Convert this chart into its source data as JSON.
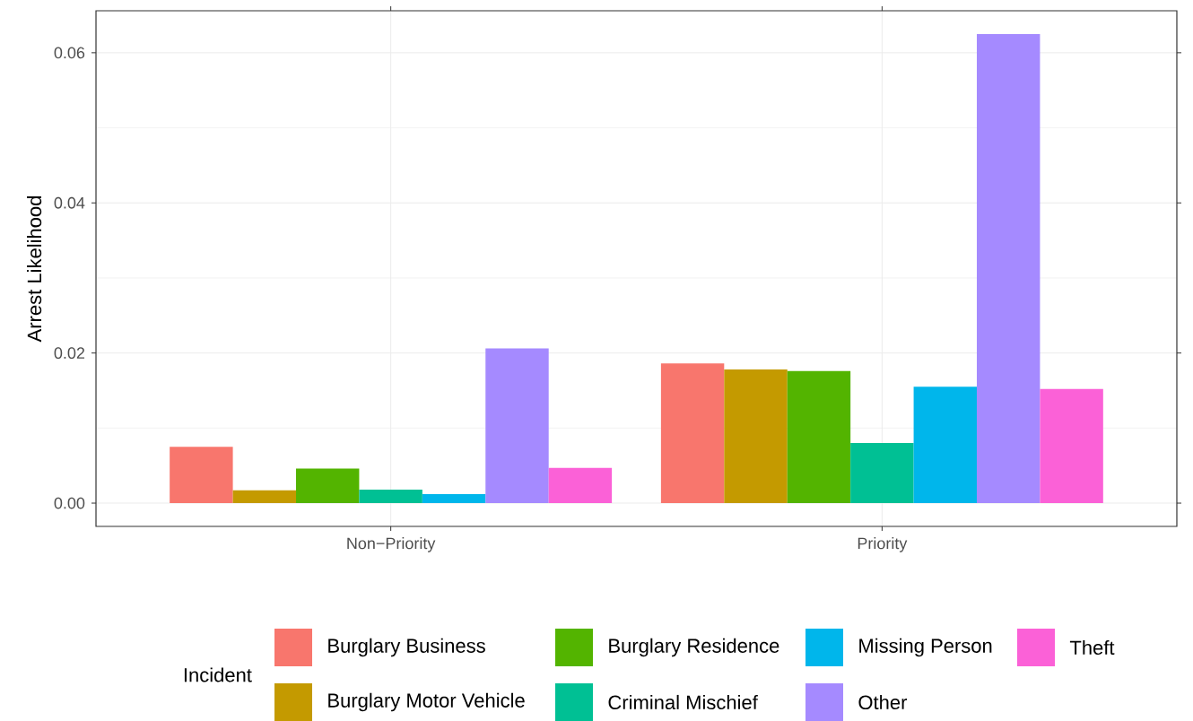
{
  "chart_data": {
    "type": "bar",
    "ylabel": "Arrest Likelihood",
    "legend_title": "Incident",
    "categories": [
      "Non−Priority",
      "Priority"
    ],
    "series": [
      {
        "name": "Burglary Business",
        "color": "#F8766D",
        "values": [
          0.0075,
          0.0186
        ]
      },
      {
        "name": "Burglary Motor Vehicle",
        "color": "#C49A00",
        "values": [
          0.0017,
          0.0178
        ]
      },
      {
        "name": "Burglary Residence",
        "color": "#53B400",
        "values": [
          0.0046,
          0.0176
        ]
      },
      {
        "name": "Criminal Mischief",
        "color": "#00C094",
        "values": [
          0.0018,
          0.008
        ]
      },
      {
        "name": "Missing Person",
        "color": "#00B6EB",
        "values": [
          0.0012,
          0.0155
        ]
      },
      {
        "name": "Other",
        "color": "#A58AFF",
        "values": [
          0.0206,
          0.0625
        ]
      },
      {
        "name": "Theft",
        "color": "#FB61D7",
        "values": [
          0.0047,
          0.0152
        ]
      }
    ],
    "ylim": [
      -0.0031,
      0.0656
    ],
    "yticks": [
      {
        "value": 0,
        "label": "0.00"
      },
      {
        "value": 0.02,
        "label": "0.02"
      },
      {
        "value": 0.04,
        "label": "0.04"
      },
      {
        "value": 0.06,
        "label": "0.06"
      }
    ],
    "grid": true,
    "legend": "bottom"
  }
}
